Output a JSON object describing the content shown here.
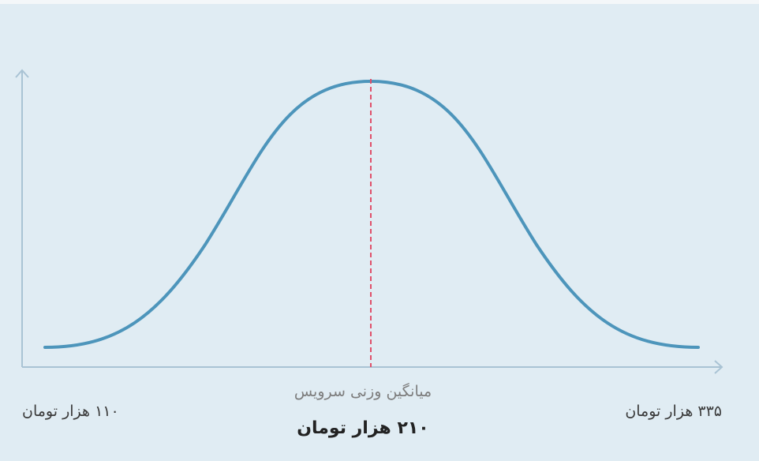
{
  "labels": {
    "min": "۱۱۰ هزار تومان",
    "max": "۳۳۵ هزار تومان",
    "mean_caption": "میانگین وزنی سرویس",
    "mean_value": "۲۱۰ هزار تومان"
  }
}
